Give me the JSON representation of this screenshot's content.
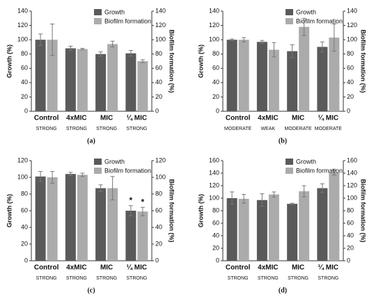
{
  "chart_data": [
    {
      "type": "bar",
      "label": "(a)",
      "ylabel": "Growth (%)",
      "y2label": "Biofilm formation (%)",
      "categories": [
        "Control",
        "4xMIC",
        "MIC",
        "¼ MIC"
      ],
      "sublabels": [
        "STRONG",
        "STRONG",
        "STRONG",
        "STRONG"
      ],
      "series": [
        {
          "name": "Growth",
          "color": "#5a5a5a",
          "values": [
            100,
            88,
            80,
            81
          ],
          "errors": [
            8,
            3,
            3,
            4
          ]
        },
        {
          "name": "Biofilm formation",
          "color": "#ababab",
          "axis": "y2",
          "values": [
            100,
            87,
            94,
            70
          ],
          "errors": [
            22,
            1,
            4,
            2
          ]
        }
      ],
      "ylim": [
        0,
        140
      ],
      "yticks": [
        0,
        20,
        40,
        60,
        80,
        100,
        120,
        140
      ],
      "y2lim": [
        0,
        140
      ],
      "y2ticks": [
        0,
        20,
        40,
        60,
        80,
        100,
        120,
        140
      ]
    },
    {
      "type": "bar",
      "label": "(b)",
      "ylabel": "Growth (%)",
      "y2label": "Biofilm formation (%)",
      "categories": [
        "Control",
        "4xMIC",
        "MIC",
        "¼ MIC"
      ],
      "sublabels": [
        "MODERATE",
        "WEAK",
        "MODERATE",
        "MODERATE"
      ],
      "series": [
        {
          "name": "Growth",
          "color": "#5a5a5a",
          "values": [
            100,
            97,
            84,
            90
          ],
          "errors": [
            1,
            2,
            9,
            7
          ]
        },
        {
          "name": "Biofilm formation",
          "color": "#ababab",
          "axis": "y2",
          "values": [
            100,
            86,
            118,
            103
          ],
          "errors": [
            3,
            10,
            12,
            19
          ]
        }
      ],
      "ylim": [
        0,
        140
      ],
      "yticks": [
        0,
        20,
        40,
        60,
        80,
        100,
        120,
        140
      ],
      "y2lim": [
        0,
        140
      ],
      "y2ticks": [
        0,
        20,
        40,
        60,
        80,
        100,
        120,
        140
      ]
    },
    {
      "type": "bar",
      "label": "(c)",
      "ylabel": "Growth (%)",
      "y2label": "Biofilm formation (%)",
      "categories": [
        "Control",
        "4xMIC",
        "MIC",
        "¼ MIC"
      ],
      "sublabels": [
        "STRONG",
        "STRONG",
        "STRONG",
        "STRONG"
      ],
      "series": [
        {
          "name": "Growth",
          "color": "#5a5a5a",
          "values": [
            101,
            104,
            87,
            60
          ],
          "errors": [
            6,
            2,
            4,
            6
          ],
          "markers": [
            null,
            null,
            null,
            "*"
          ]
        },
        {
          "name": "Biofilm formation",
          "color": "#ababab",
          "axis": "y2",
          "values": [
            100,
            103,
            87,
            59
          ],
          "errors": [
            7,
            2,
            14,
            5
          ],
          "markers": [
            null,
            null,
            null,
            "*"
          ]
        }
      ],
      "ylim": [
        0,
        120
      ],
      "yticks": [
        0,
        20,
        40,
        60,
        80,
        100,
        120
      ],
      "y2lim": [
        0,
        120
      ],
      "y2ticks": [
        0,
        20,
        40,
        60,
        80,
        100,
        120
      ]
    },
    {
      "type": "bar",
      "label": "(d)",
      "ylabel": "Growth (%)",
      "y2label": "Biofilm formation (%)",
      "categories": [
        "Control",
        "4xMIC",
        "MIC",
        "¼ MIC"
      ],
      "sublabels": [
        "STRONG",
        "STRONG",
        "STRONG",
        "STRONG"
      ],
      "series": [
        {
          "name": "Growth",
          "color": "#5a5a5a",
          "values": [
            100,
            97,
            91,
            116
          ],
          "errors": [
            10,
            10,
            1,
            7
          ]
        },
        {
          "name": "Biofilm formation",
          "color": "#ababab",
          "axis": "y2",
          "values": [
            99,
            106,
            111,
            141
          ],
          "errors": [
            7,
            4,
            9,
            4
          ]
        }
      ],
      "ylim": [
        0,
        160
      ],
      "yticks": [
        0,
        20,
        40,
        60,
        80,
        100,
        120,
        140,
        160
      ],
      "y2lim": [
        0,
        160
      ],
      "y2ticks": [
        0,
        20,
        40,
        60,
        80,
        100,
        120,
        140,
        160
      ]
    }
  ]
}
